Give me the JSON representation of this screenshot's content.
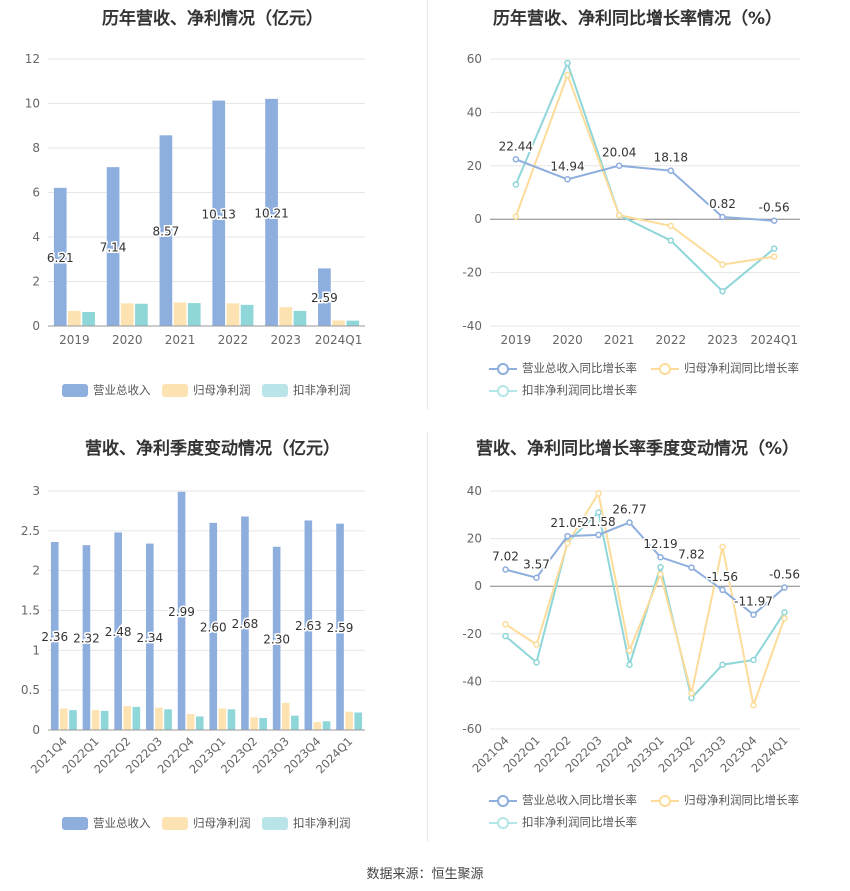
{
  "footer": {
    "source": "数据来源：恒生聚源"
  },
  "colors": {
    "revenue": "#8eaede",
    "parent": "#fde3b2",
    "deducted": "#8fd6d9",
    "rev_line": "#8eaede",
    "parent_line": "#fddc9a",
    "ded_line": "#8fd6d9"
  },
  "legend": {
    "bar": [
      "营业总收入",
      "归母净利润",
      "扣非净利润"
    ],
    "line": [
      "营业总收入同比增长率",
      "归母净利润同比增长率",
      "扣非净利润同比增长率"
    ]
  },
  "chart_data": [
    {
      "id": "annual-bars",
      "type": "bar",
      "title": "历年营收、净利情况（亿元）",
      "categories": [
        "2019",
        "2020",
        "2021",
        "2022",
        "2023",
        "2024Q1"
      ],
      "ylim": [
        0,
        12
      ],
      "yticks": [
        0,
        2,
        4,
        6,
        8,
        10,
        12
      ],
      "series": [
        {
          "name": "营业总收入",
          "values": [
            6.21,
            7.14,
            8.57,
            10.13,
            10.21,
            2.59
          ],
          "labels": [
            "6.21",
            "7.14",
            "8.57",
            "10.13",
            "10.21",
            "2.59"
          ]
        },
        {
          "name": "归母净利润",
          "values": [
            0.68,
            1.02,
            1.06,
            1.02,
            0.85,
            0.25
          ]
        },
        {
          "name": "扣非净利润",
          "values": [
            0.63,
            1.0,
            1.03,
            0.95,
            0.68,
            0.24
          ]
        }
      ],
      "grid": true,
      "legend": "bottom"
    },
    {
      "id": "annual-lines",
      "type": "line",
      "title": "历年营收、净利同比增长率情况（%）",
      "categories": [
        "2019",
        "2020",
        "2021",
        "2022",
        "2023",
        "2024Q1"
      ],
      "ylim": [
        -40,
        60
      ],
      "yticks": [
        -40,
        -20,
        0,
        20,
        40,
        60
      ],
      "series": [
        {
          "name": "营业总收入同比增长率",
          "values": [
            22.44,
            14.94,
            20.04,
            18.18,
            0.82,
            -0.56
          ],
          "labels": [
            "22.44",
            "14.94",
            "20.04",
            "18.18",
            "0.82",
            "-0.56"
          ]
        },
        {
          "name": "归母净利润同比增长率",
          "values": [
            1.0,
            54.0,
            1.5,
            -2.5,
            -17.0,
            -14.0
          ]
        },
        {
          "name": "扣非净利润同比增长率",
          "values": [
            13.0,
            58.5,
            1.5,
            -8.0,
            -27.0,
            -11.0
          ]
        }
      ],
      "grid": true,
      "legend": "bottom"
    },
    {
      "id": "quarter-bars",
      "type": "bar",
      "title": "营收、净利季度变动情况（亿元）",
      "categories": [
        "2021Q4",
        "2022Q1",
        "2022Q2",
        "2022Q3",
        "2022Q4",
        "2023Q1",
        "2023Q2",
        "2023Q3",
        "2023Q4",
        "2024Q1"
      ],
      "ylim": [
        0,
        3
      ],
      "yticks": [
        0,
        0.5,
        1,
        1.5,
        2,
        2.5,
        3
      ],
      "ytick_labels": [
        "0",
        "0.5",
        "1",
        "1.5",
        "2",
        "2.5",
        "3"
      ],
      "series": [
        {
          "name": "营业总收入",
          "values": [
            2.36,
            2.32,
            2.48,
            2.34,
            2.99,
            2.6,
            2.68,
            2.3,
            2.63,
            2.59
          ],
          "labels": [
            "2.36",
            "2.32",
            "2.48",
            "2.34",
            "2.99",
            "2.60",
            "2.68",
            "2.30",
            "2.63",
            "2.59"
          ]
        },
        {
          "name": "归母净利润",
          "values": [
            0.27,
            0.25,
            0.3,
            0.28,
            0.2,
            0.27,
            0.16,
            0.34,
            0.1,
            0.23
          ]
        },
        {
          "name": "扣非净利润",
          "values": [
            0.25,
            0.24,
            0.29,
            0.26,
            0.17,
            0.26,
            0.15,
            0.18,
            0.11,
            0.22
          ]
        }
      ],
      "grid": true,
      "legend": "bottom"
    },
    {
      "id": "quarter-lines",
      "type": "line",
      "title": "营收、净利同比增长率季度变动情况（%）",
      "categories": [
        "2021Q4",
        "2022Q1",
        "2022Q2",
        "2022Q3",
        "2022Q4",
        "2023Q1",
        "2023Q2",
        "2023Q3",
        "2023Q4",
        "2024Q1"
      ],
      "ylim": [
        -60,
        40
      ],
      "yticks": [
        -60,
        -40,
        -20,
        0,
        20,
        40
      ],
      "series": [
        {
          "name": "营业总收入同比增长率",
          "values": [
            7.02,
            3.57,
            21.05,
            21.58,
            26.77,
            12.19,
            7.82,
            -1.56,
            -11.97,
            -0.56
          ],
          "labels": [
            "7.02",
            "3.57",
            "21.05",
            "21.58",
            "26.77",
            "12.19",
            "7.82",
            "-1.56",
            "-11.97",
            "-0.56"
          ]
        },
        {
          "name": "归母净利润同比增长率",
          "values": [
            -16.0,
            -24.5,
            18.0,
            39.0,
            -27.0,
            5.0,
            -45.0,
            16.5,
            -50.0,
            -13.5
          ]
        },
        {
          "name": "扣非净利润同比增长率",
          "values": [
            -21.0,
            -32.0,
            18.5,
            31.0,
            -33.0,
            8.0,
            -47.0,
            -33.0,
            -31.0,
            -11.0
          ]
        }
      ],
      "grid": true,
      "legend": "bottom"
    }
  ]
}
